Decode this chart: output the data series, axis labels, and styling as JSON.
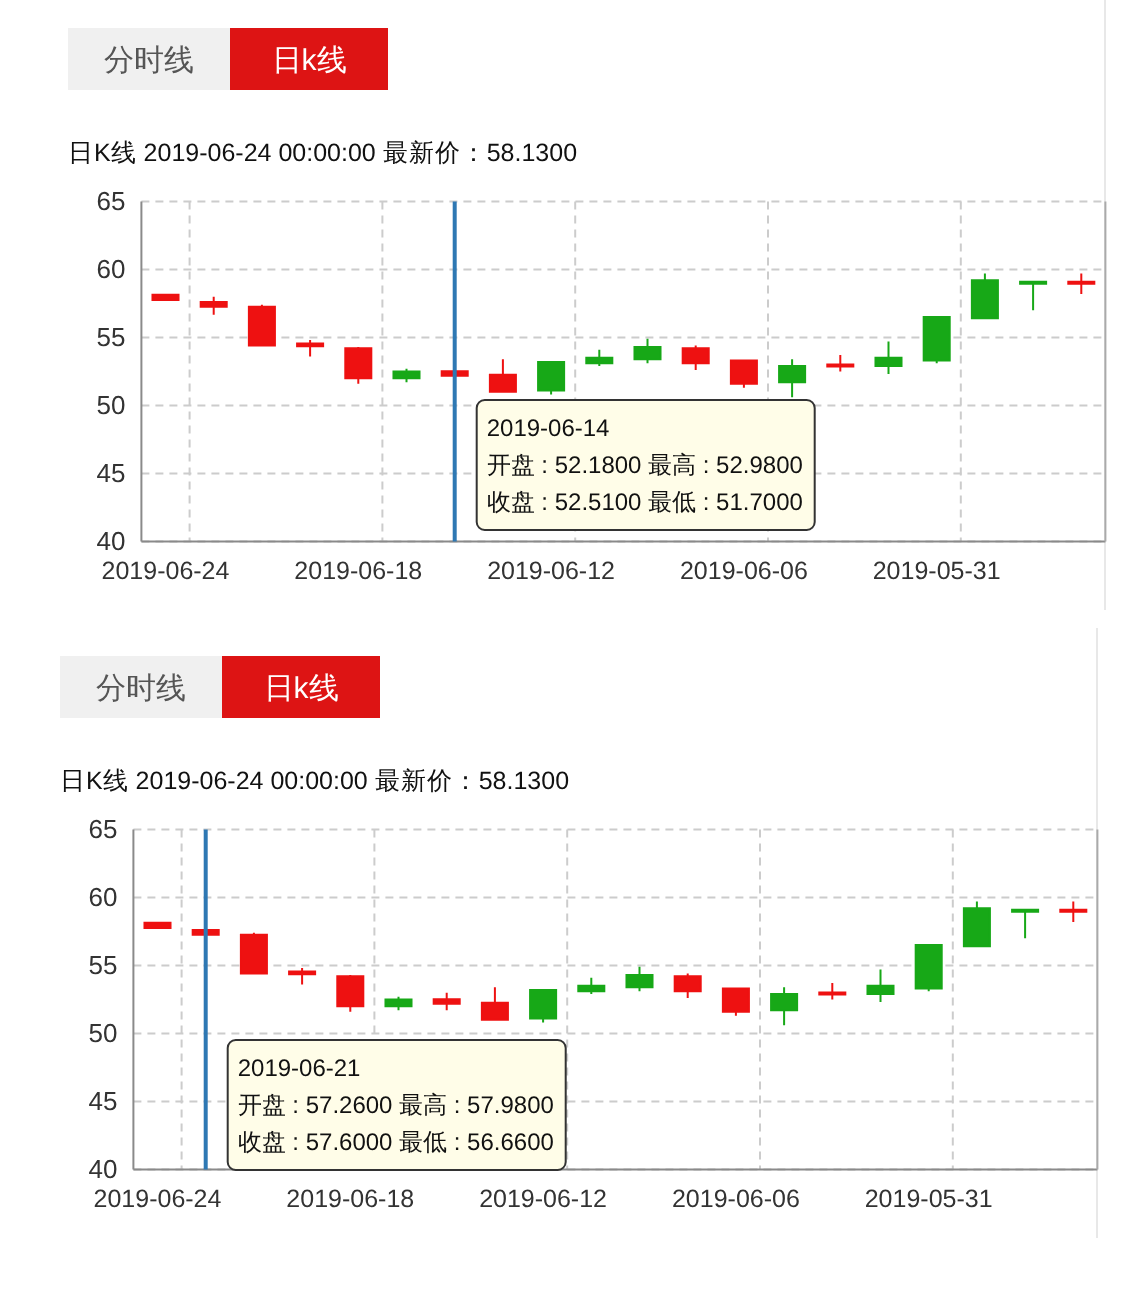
{
  "chart_data": [
    {
      "type": "candlestick",
      "title": "日K线 2019-06-24 00:00:00 最新价：58.1300",
      "categories": [
        "2019-06-24",
        null,
        null,
        null,
        "2019-06-18",
        null,
        null,
        null,
        "2019-06-12",
        null,
        null,
        null,
        "2019-06-06",
        null,
        null,
        null,
        "2019-05-31",
        null,
        null,
        null
      ],
      "ohlc": [
        [
          57.75,
          58.2,
          57.7,
          58.13
        ],
        [
          57.26,
          57.98,
          56.66,
          57.6
        ],
        [
          54.4,
          57.4,
          54.4,
          57.25
        ],
        [
          54.35,
          54.8,
          53.6,
          54.55
        ],
        [
          52.0,
          54.3,
          51.6,
          54.2
        ],
        [
          52.5,
          52.7,
          51.7,
          52.0
        ],
        [
          52.18,
          52.98,
          51.7,
          52.51
        ],
        [
          51.0,
          53.4,
          51.0,
          52.25
        ],
        [
          53.2,
          53.2,
          50.8,
          51.1
        ],
        [
          53.5,
          54.1,
          52.9,
          53.1
        ],
        [
          54.3,
          54.9,
          53.1,
          53.4
        ],
        [
          53.1,
          54.4,
          52.6,
          54.2
        ],
        [
          51.6,
          53.3,
          51.3,
          53.3
        ],
        [
          52.9,
          53.4,
          50.6,
          51.7
        ],
        [
          52.9,
          53.7,
          52.5,
          53.0
        ],
        [
          53.5,
          54.7,
          52.3,
          52.9
        ],
        [
          56.5,
          56.5,
          53.1,
          53.3
        ],
        [
          59.2,
          59.7,
          56.4,
          56.4
        ],
        [
          59.1,
          59.1,
          57.0,
          59.1
        ],
        [
          59.0,
          59.7,
          58.2,
          59.1
        ]
      ],
      "colors": [
        "#ee1111",
        "#ee1111",
        "#ee1111",
        "#ee1111",
        "#ee1111",
        "#17a817",
        "#ee1111",
        "#ee1111",
        "#17a817",
        "#17a817",
        "#17a817",
        "#ee1111",
        "#ee1111",
        "#17a817",
        "#ee1111",
        "#17a817",
        "#17a817",
        "#17a817",
        "#17a817",
        "#ee1111"
      ],
      "ylim": [
        40,
        65
      ],
      "yticks": [
        40,
        45,
        50,
        55,
        60,
        65
      ],
      "grid": true,
      "annotations": [
        "分时线",
        "日k线",
        "2019-06-14\n开盘 : 52.1800 最高 : 52.9800\n收盘 : 52.5100 最低 : 51.7000"
      ]
    },
    {
      "type": "candlestick",
      "title": "日K线 2019-06-24 00:00:00 最新价：58.1300",
      "categories": [
        "2019-06-24",
        null,
        null,
        null,
        "2019-06-18",
        null,
        null,
        null,
        "2019-06-12",
        null,
        null,
        null,
        "2019-06-06",
        null,
        null,
        null,
        "2019-05-31",
        null,
        null,
        null
      ],
      "ohlc": [
        [
          57.75,
          58.2,
          57.7,
          58.13
        ],
        [
          57.26,
          57.98,
          56.66,
          57.6
        ],
        [
          54.4,
          57.4,
          54.4,
          57.25
        ],
        [
          54.35,
          54.8,
          53.6,
          54.55
        ],
        [
          52.0,
          54.3,
          51.6,
          54.2
        ],
        [
          52.5,
          52.7,
          51.7,
          52.0
        ],
        [
          52.18,
          52.98,
          51.7,
          52.51
        ],
        [
          51.0,
          53.4,
          51.0,
          52.25
        ],
        [
          53.2,
          53.2,
          50.8,
          51.1
        ],
        [
          53.5,
          54.1,
          52.9,
          53.1
        ],
        [
          54.3,
          54.9,
          53.1,
          53.4
        ],
        [
          53.1,
          54.4,
          52.6,
          54.2
        ],
        [
          51.6,
          53.3,
          51.3,
          53.3
        ],
        [
          52.9,
          53.4,
          50.6,
          51.7
        ],
        [
          52.9,
          53.7,
          52.5,
          53.0
        ],
        [
          53.5,
          54.7,
          52.3,
          52.9
        ],
        [
          56.5,
          56.5,
          53.1,
          53.3
        ],
        [
          59.2,
          59.7,
          56.4,
          56.4
        ],
        [
          59.1,
          59.1,
          57.0,
          59.1
        ],
        [
          59.0,
          59.7,
          58.2,
          59.1
        ]
      ],
      "colors": [
        "#ee1111",
        "#ee1111",
        "#ee1111",
        "#ee1111",
        "#ee1111",
        "#17a817",
        "#ee1111",
        "#ee1111",
        "#17a817",
        "#17a817",
        "#17a817",
        "#ee1111",
        "#ee1111",
        "#17a817",
        "#ee1111",
        "#17a817",
        "#17a817",
        "#17a817",
        "#17a817",
        "#ee1111"
      ],
      "ylim": [
        40,
        65
      ],
      "yticks": [
        40,
        45,
        50,
        55,
        60,
        65
      ],
      "grid": true,
      "annotations": [
        "分时线",
        "日k线",
        "2019-06-21\n开盘 : 57.2600 最高 : 57.9800\n收盘 : 57.6000 最低 : 56.6600"
      ]
    }
  ]
}
